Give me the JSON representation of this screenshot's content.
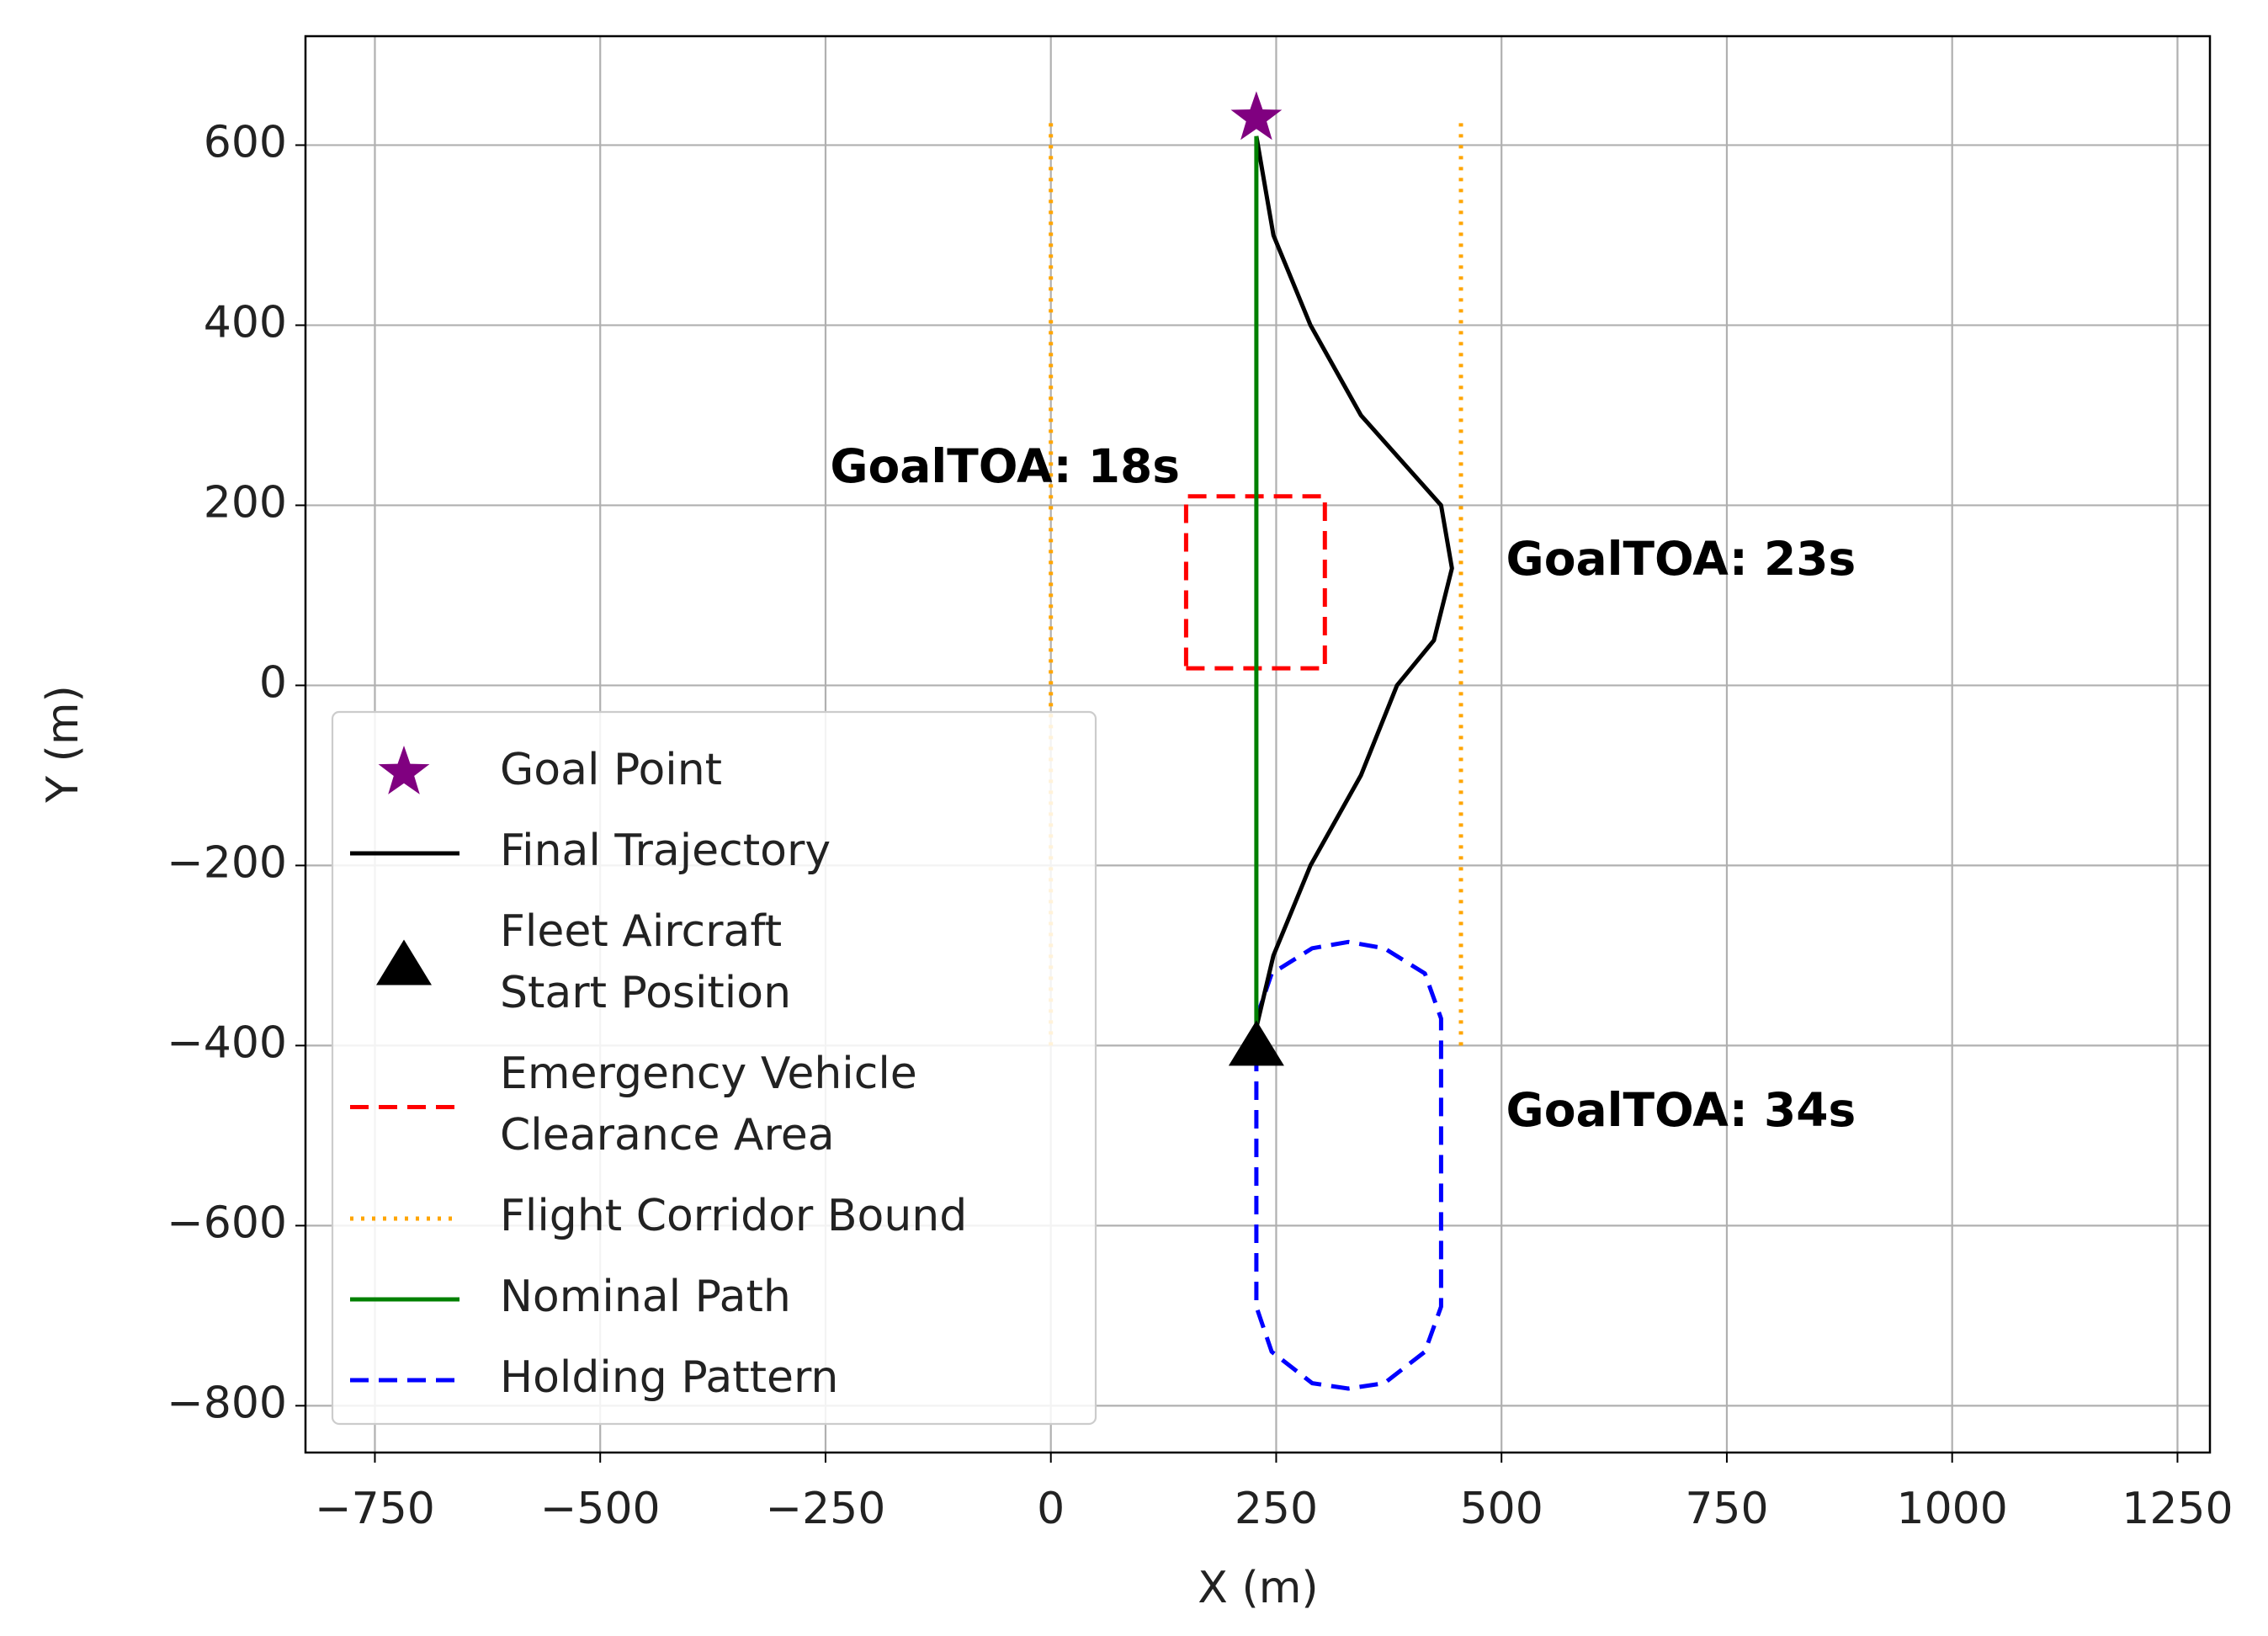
{
  "chart_data": {
    "type": "line",
    "xlabel": "X (m)",
    "ylabel": "Y (m)",
    "xlim": [
      -827,
      1286
    ],
    "ylim": [
      -852,
      721
    ],
    "xticks": [
      {
        "value": -750,
        "label": "−750"
      },
      {
        "value": -500,
        "label": "−500"
      },
      {
        "value": -250,
        "label": "−250"
      },
      0,
      250,
      500,
      750,
      1000,
      1250
    ],
    "yticks": [
      {
        "value": -800,
        "label": "−800"
      },
      {
        "value": -600,
        "label": "−600"
      },
      {
        "value": -400,
        "label": "−400"
      },
      {
        "value": -200,
        "label": "−200"
      },
      0,
      200,
      400,
      600
    ],
    "grid": true,
    "legend": "lower left",
    "series": [
      {
        "name": "Goal Point",
        "color": "#800080",
        "marker": "star",
        "x": [
          228
        ],
        "values": [
          630
        ]
      },
      {
        "name": "Final Trajectory",
        "color": "#000000",
        "style": "solid",
        "x": [
          228,
          247,
          288,
          344,
          384,
          425,
          445,
          433,
          344,
          288,
          247,
          228
        ],
        "values": [
          -380,
          -300,
          -200,
          -100,
          0,
          50,
          130,
          200,
          300,
          400,
          500,
          610
        ]
      },
      {
        "name": "Fleet Aircraft\nStart Position",
        "color": "#000000",
        "marker": "triangle",
        "x": [
          228
        ],
        "values": [
          -400
        ]
      },
      {
        "name": "Emergency Vehicle\nClearance Area",
        "color": "#ff0000",
        "style": "dashed",
        "x": [
          150,
          304,
          304,
          150,
          150
        ],
        "values": [
          19,
          19,
          210,
          210,
          19
        ]
      },
      {
        "name": "Flight Corridor Bound",
        "color": "#ffa500",
        "style": "dotted",
        "x": [
          0,
          0,
          null,
          455,
          455
        ],
        "values": [
          -400,
          625,
          null,
          -400,
          625
        ]
      },
      {
        "name": "Nominal Path",
        "color": "#008000",
        "style": "solid",
        "x": [
          228,
          228
        ],
        "values": [
          -400,
          610
        ]
      },
      {
        "name": "Holding Pattern",
        "color": "#0000ff",
        "style": "dashed",
        "x": [
          228,
          245,
          290,
          330,
          370,
          415,
          433,
          433,
          415,
          370,
          330,
          290,
          245,
          228,
          228
        ],
        "values": [
          -370,
          -320,
          -292,
          -285,
          -292,
          -320,
          -370,
          -690,
          -740,
          -775,
          -781,
          -775,
          -740,
          -690,
          -370
        ]
      }
    ],
    "annotations": [
      {
        "text": "GoalTOA: 18s",
        "x": -245,
        "y": 240
      },
      {
        "text": "GoalTOA: 23s",
        "x": 505,
        "y": 137
      },
      {
        "text": "GoalTOA: 34s",
        "x": 505,
        "y": -475
      }
    ]
  }
}
